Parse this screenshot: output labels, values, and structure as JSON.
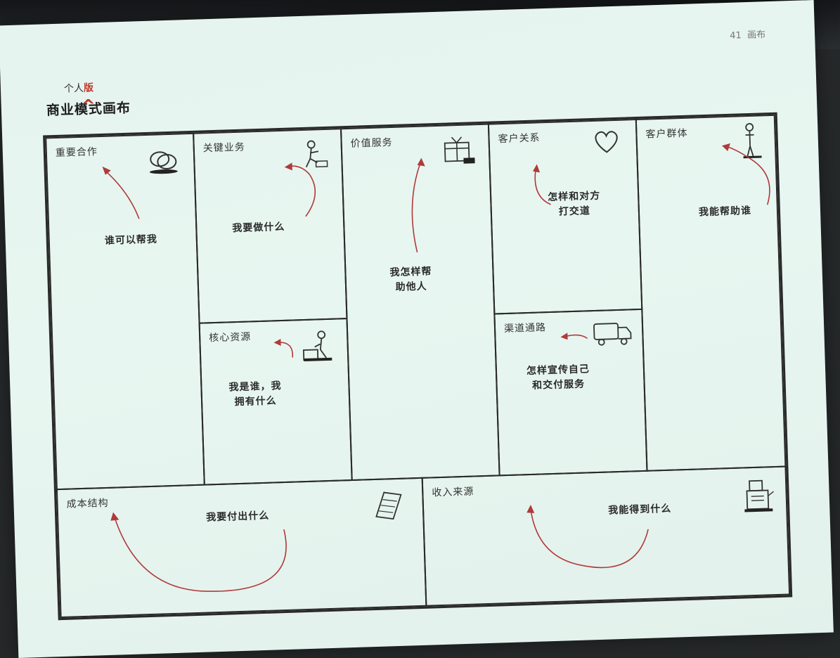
{
  "page": {
    "number": "41",
    "label": "画布"
  },
  "title": {
    "main": "商业模式画布",
    "insert_prefix": "个人",
    "insert_highlight": "版"
  },
  "blocks": {
    "key_partners": {
      "label": "重要合作",
      "question": "谁可以帮我"
    },
    "key_activities": {
      "label": "关键业务",
      "question": "我要做什么"
    },
    "key_resources": {
      "label": "核心资源",
      "question_line1": "我是谁，我",
      "question_line2": "拥有什么"
    },
    "value_propositions": {
      "label": "价值服务",
      "question_line1": "我怎样帮",
      "question_line2": "助他人"
    },
    "customer_relationships": {
      "label": "客户关系",
      "question_line1": "怎样和对方",
      "question_line2": "打交道"
    },
    "channels": {
      "label": "渠道通路",
      "question_line1": "怎样宣传自己",
      "question_line2": "和交付服务"
    },
    "customer_segments": {
      "label": "客户群体",
      "question": "我能帮助谁"
    },
    "cost_structure": {
      "label": "成本结构",
      "question": "我要付出什么"
    },
    "revenue_streams": {
      "label": "收入来源",
      "question": "我能得到什么"
    }
  },
  "icons": {
    "key_partners": "rings-icon",
    "key_activities": "worker-icon",
    "key_resources": "person-with-tools-icon",
    "value_propositions": "gift-box-icon",
    "customer_relationships": "heart-icon",
    "channels": "truck-icon",
    "customer_segments": "standing-person-icon",
    "cost_structure": "receipt-icon",
    "revenue_streams": "cash-register-icon"
  },
  "colors": {
    "paper": "#e6f4ef",
    "ink": "#2a2a2a",
    "arrow": "#b03a3a"
  }
}
